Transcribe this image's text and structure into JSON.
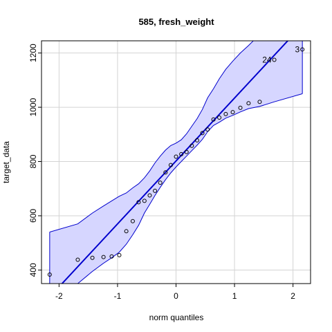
{
  "chart_data": {
    "type": "scatter",
    "title": "585, fresh_weight",
    "xlabel": "norm quantiles",
    "ylabel": "target_data",
    "xlim": [
      -2.3,
      2.3
    ],
    "ylim": [
      350,
      1245
    ],
    "x_ticks": [
      -2,
      -1,
      0,
      1,
      2
    ],
    "x_tick_labels": [
      "-2",
      "-1",
      "0",
      "1",
      "2"
    ],
    "y_ticks": [
      400,
      600,
      800,
      1000,
      1200
    ],
    "y_tick_labels": [
      "400",
      "600",
      "800",
      "1000",
      "1200"
    ],
    "grid": true,
    "points": [
      {
        "x": -2.16,
        "y": 383
      },
      {
        "x": -1.68,
        "y": 438
      },
      {
        "x": -1.43,
        "y": 445
      },
      {
        "x": -1.24,
        "y": 448
      },
      {
        "x": -1.1,
        "y": 450
      },
      {
        "x": -0.97,
        "y": 455
      },
      {
        "x": -0.85,
        "y": 543
      },
      {
        "x": -0.74,
        "y": 580
      },
      {
        "x": -0.64,
        "y": 650
      },
      {
        "x": -0.54,
        "y": 655
      },
      {
        "x": -0.45,
        "y": 675
      },
      {
        "x": -0.36,
        "y": 692
      },
      {
        "x": -0.27,
        "y": 722
      },
      {
        "x": -0.18,
        "y": 760
      },
      {
        "x": -0.09,
        "y": 787
      },
      {
        "x": 0.0,
        "y": 818
      },
      {
        "x": 0.09,
        "y": 827
      },
      {
        "x": 0.18,
        "y": 835
      },
      {
        "x": 0.27,
        "y": 858
      },
      {
        "x": 0.36,
        "y": 878
      },
      {
        "x": 0.45,
        "y": 905
      },
      {
        "x": 0.54,
        "y": 918
      },
      {
        "x": 0.64,
        "y": 955
      },
      {
        "x": 0.74,
        "y": 962
      },
      {
        "x": 0.85,
        "y": 975
      },
      {
        "x": 0.97,
        "y": 982
      },
      {
        "x": 1.1,
        "y": 998
      },
      {
        "x": 1.24,
        "y": 1015
      },
      {
        "x": 1.43,
        "y": 1020
      },
      {
        "x": 1.68,
        "y": 1175
      },
      {
        "x": 2.16,
        "y": 1213
      }
    ],
    "fit_line": {
      "intercept": 802,
      "slope": 232,
      "color": "#0000cd"
    },
    "envelope": {
      "x": [
        -2.16,
        -1.68,
        -1.43,
        -1.24,
        -1.1,
        -0.97,
        -0.85,
        -0.74,
        -0.64,
        -0.54,
        -0.45,
        -0.36,
        -0.27,
        -0.18,
        -0.09,
        0.0,
        0.09,
        0.18,
        0.27,
        0.36,
        0.45,
        0.54,
        0.64,
        0.74,
        0.85,
        0.97,
        1.1,
        1.24,
        1.43,
        1.68,
        2.16
      ],
      "lower": [
        300,
        350,
        395,
        425,
        445,
        466,
        495,
        530,
        565,
        610,
        642,
        675,
        705,
        733,
        758,
        780,
        800,
        820,
        840,
        860,
        882,
        910,
        933,
        945,
        960,
        970,
        983,
        995,
        1003,
        1020,
        1050
      ],
      "upper": [
        540,
        570,
        610,
        636,
        655,
        672,
        684,
        703,
        718,
        740,
        765,
        795,
        820,
        842,
        859,
        868,
        880,
        902,
        930,
        958,
        992,
        1035,
        1068,
        1105,
        1140,
        1170,
        1200,
        1228,
        1268,
        1320,
        1360
      ],
      "fill": "#d6d6ff",
      "stroke": "#0000cd"
    },
    "labeled_points": [
      {
        "label": "24",
        "x": 1.68,
        "y": 1175
      },
      {
        "label": "3",
        "x": 2.16,
        "y": 1213
      }
    ]
  }
}
